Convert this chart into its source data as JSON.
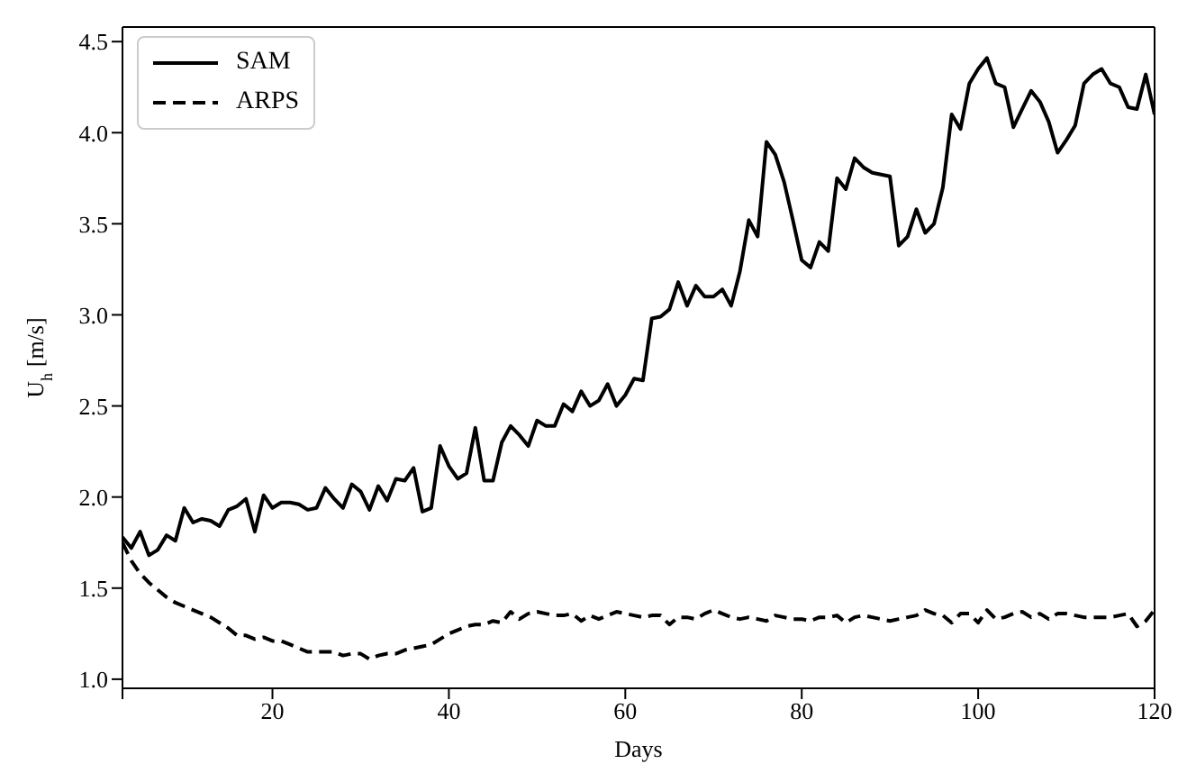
{
  "chart_data": {
    "type": "line",
    "xlabel": "Days",
    "ylabel": "U$_{h}$ [m/s]",
    "x": [
      3,
      4,
      5,
      6,
      7,
      8,
      9,
      10,
      11,
      12,
      13,
      14,
      15,
      16,
      17,
      18,
      19,
      20,
      21,
      22,
      23,
      24,
      25,
      26,
      27,
      28,
      29,
      30,
      31,
      32,
      33,
      34,
      35,
      36,
      37,
      38,
      39,
      40,
      41,
      42,
      43,
      44,
      45,
      46,
      47,
      48,
      49,
      50,
      51,
      52,
      53,
      54,
      55,
      56,
      57,
      58,
      59,
      60,
      61,
      62,
      63,
      64,
      65,
      66,
      67,
      68,
      69,
      70,
      71,
      72,
      73,
      74,
      75,
      76,
      77,
      78,
      79,
      80,
      81,
      82,
      83,
      84,
      85,
      86,
      87,
      88,
      89,
      90,
      91,
      92,
      93,
      94,
      95,
      96,
      97,
      98,
      99,
      100,
      101,
      102,
      103,
      104,
      105,
      106,
      107,
      108,
      109,
      110,
      111,
      112,
      113,
      114,
      115,
      116,
      117,
      118,
      119,
      120
    ],
    "series": [
      {
        "name": "SAM",
        "color": "#000000",
        "line_style": "solid",
        "values": [
          1.78,
          1.72,
          1.81,
          1.68,
          1.71,
          1.79,
          1.76,
          1.94,
          1.86,
          1.88,
          1.87,
          1.84,
          1.93,
          1.95,
          1.99,
          1.81,
          2.01,
          1.94,
          1.97,
          1.97,
          1.96,
          1.93,
          1.94,
          2.05,
          1.99,
          1.94,
          2.07,
          2.03,
          1.93,
          2.06,
          1.98,
          2.1,
          2.09,
          2.16,
          1.92,
          1.94,
          2.28,
          2.17,
          2.1,
          2.13,
          2.38,
          2.09,
          2.09,
          2.3,
          2.39,
          2.34,
          2.28,
          2.42,
          2.39,
          2.39,
          2.51,
          2.47,
          2.58,
          2.5,
          2.53,
          2.62,
          2.5,
          2.56,
          2.65,
          2.64,
          2.98,
          2.99,
          3.03,
          3.18,
          3.05,
          3.16,
          3.1,
          3.1,
          3.14,
          3.05,
          3.24,
          3.52,
          3.43,
          3.95,
          3.88,
          3.73,
          3.52,
          3.3,
          3.26,
          3.4,
          3.35,
          3.75,
          3.69,
          3.86,
          3.81,
          3.78,
          3.77,
          3.76,
          3.38,
          3.43,
          3.58,
          3.45,
          3.5,
          3.7,
          4.1,
          4.02,
          4.27,
          4.35,
          4.41,
          4.27,
          4.25,
          4.03,
          4.13,
          4.23,
          4.17,
          4.06,
          3.89,
          3.96,
          4.04,
          4.27,
          4.32,
          4.35,
          4.27,
          4.25,
          4.14,
          4.13,
          4.32,
          4.1
        ]
      },
      {
        "name": "ARPS",
        "color": "#000000",
        "line_style": "dashed",
        "values": [
          1.75,
          1.65,
          1.58,
          1.53,
          1.49,
          1.45,
          1.42,
          1.4,
          1.38,
          1.36,
          1.34,
          1.31,
          1.28,
          1.24,
          1.24,
          1.22,
          1.23,
          1.21,
          1.21,
          1.19,
          1.17,
          1.15,
          1.15,
          1.15,
          1.15,
          1.13,
          1.14,
          1.14,
          1.11,
          1.13,
          1.14,
          1.14,
          1.16,
          1.17,
          1.18,
          1.19,
          1.22,
          1.25,
          1.27,
          1.29,
          1.3,
          1.3,
          1.32,
          1.31,
          1.37,
          1.33,
          1.36,
          1.37,
          1.36,
          1.35,
          1.35,
          1.36,
          1.32,
          1.35,
          1.33,
          1.35,
          1.37,
          1.36,
          1.35,
          1.34,
          1.35,
          1.35,
          1.3,
          1.34,
          1.34,
          1.33,
          1.36,
          1.38,
          1.36,
          1.34,
          1.33,
          1.34,
          1.33,
          1.32,
          1.35,
          1.34,
          1.33,
          1.33,
          1.32,
          1.34,
          1.34,
          1.35,
          1.31,
          1.34,
          1.35,
          1.34,
          1.33,
          1.32,
          1.33,
          1.34,
          1.35,
          1.38,
          1.36,
          1.35,
          1.31,
          1.36,
          1.36,
          1.31,
          1.38,
          1.33,
          1.34,
          1.36,
          1.37,
          1.34,
          1.36,
          1.33,
          1.36,
          1.36,
          1.35,
          1.34,
          1.34,
          1.34,
          1.34,
          1.35,
          1.36,
          1.29,
          1.32,
          1.38
        ]
      }
    ],
    "xlim": [
      3,
      120
    ],
    "xticks": [
      {
        "value": 3,
        "label": null
      },
      20,
      40,
      60,
      80,
      100,
      120
    ],
    "ylim": [
      0.95,
      4.58
    ],
    "yticks": [
      {
        "value": 1,
        "label": "1.0"
      },
      1.5,
      {
        "value": 2,
        "label": "2.0"
      },
      2.5,
      {
        "value": 3,
        "label": "3.0"
      },
      3.5,
      {
        "value": 4,
        "label": "4.0"
      },
      4.5
    ],
    "grid": false,
    "legend": "top left",
    "marker": "none"
  }
}
